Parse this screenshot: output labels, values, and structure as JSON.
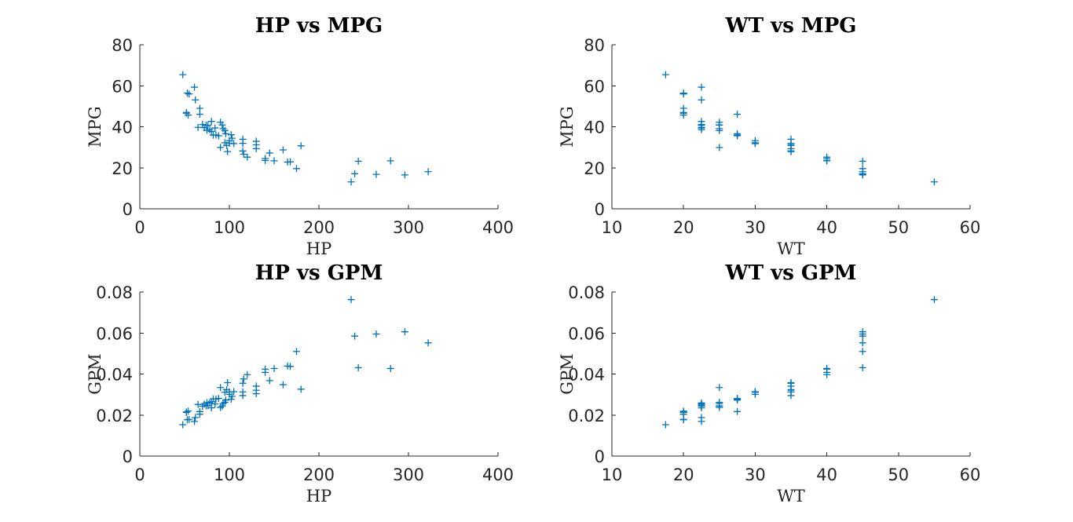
{
  "colors": {
    "marker": "#0072bd",
    "axis": "#262626"
  },
  "chart_data": [
    {
      "id": "hp-mpg",
      "type": "scatter",
      "title": "HP vs MPG",
      "xlabel": "HP",
      "ylabel": "MPG",
      "xlim": [
        0,
        400
      ],
      "ylim": [
        0,
        80
      ],
      "xticks": [
        0,
        100,
        200,
        300,
        400
      ],
      "yticks": [
        0,
        20,
        40,
        60,
        80
      ],
      "marker": "+",
      "grid": false,
      "points": [
        [
          48,
          65.4
        ],
        [
          52,
          47
        ],
        [
          52,
          46.6
        ],
        [
          55,
          56
        ],
        [
          53,
          56.4
        ],
        [
          54,
          45.7
        ],
        [
          61,
          59.3
        ],
        [
          62,
          53.1
        ],
        [
          65,
          39.7
        ],
        [
          67,
          46.1
        ],
        [
          67,
          49
        ],
        [
          70,
          41.1
        ],
        [
          72,
          39.6
        ],
        [
          74,
          40.8
        ],
        [
          75,
          38.3
        ],
        [
          76,
          40.7
        ],
        [
          78,
          38.6
        ],
        [
          80,
          42.6
        ],
        [
          80,
          37.7
        ],
        [
          82,
          35.9
        ],
        [
          84,
          39.4
        ],
        [
          85,
          36
        ],
        [
          88,
          35.6
        ],
        [
          90,
          42.2
        ],
        [
          90,
          29.9
        ],
        [
          92,
          40.9
        ],
        [
          93,
          39.1
        ],
        [
          95,
          32.2
        ],
        [
          95,
          38.2
        ],
        [
          96,
          36.6
        ],
        [
          97,
          30.9
        ],
        [
          98,
          27.9
        ],
        [
          100,
          32
        ],
        [
          100,
          33.2
        ],
        [
          103,
          34.4
        ],
        [
          102,
          36.1
        ],
        [
          105,
          31.8
        ],
        [
          115,
          33.9
        ],
        [
          115,
          31.9
        ],
        [
          115,
          28.2
        ],
        [
          116,
          26.6
        ],
        [
          120,
          25.2
        ],
        [
          130,
          31.2
        ],
        [
          130,
          29.3
        ],
        [
          130,
          32.9
        ],
        [
          140,
          24.5
        ],
        [
          140,
          23.6
        ],
        [
          145,
          27.2
        ],
        [
          150,
          23.4
        ],
        [
          160,
          28.7
        ],
        [
          165,
          22.8
        ],
        [
          168,
          22.9
        ],
        [
          175,
          19.6
        ],
        [
          180,
          30.7
        ],
        [
          236,
          13.1
        ],
        [
          240,
          17.1
        ],
        [
          244,
          23.2
        ],
        [
          264,
          16.8
        ],
        [
          280,
          23.4
        ],
        [
          296,
          16.5
        ],
        [
          322,
          18.1
        ]
      ]
    },
    {
      "id": "wt-mpg",
      "type": "scatter",
      "title": "WT vs MPG",
      "xlabel": "WT",
      "ylabel": "MPG",
      "xlim": [
        10,
        60
      ],
      "ylim": [
        0,
        80
      ],
      "xticks": [
        10,
        20,
        30,
        40,
        50,
        60
      ],
      "yticks": [
        0,
        20,
        40,
        60,
        80
      ],
      "marker": "+",
      "grid": false,
      "points": [
        [
          17.5,
          65.4
        ],
        [
          20,
          56.4
        ],
        [
          20,
          56
        ],
        [
          20,
          49
        ],
        [
          20,
          47
        ],
        [
          20,
          46.6
        ],
        [
          20,
          45.7
        ],
        [
          22.5,
          59.3
        ],
        [
          22.5,
          53.1
        ],
        [
          22.5,
          42.6
        ],
        [
          22.5,
          41.1
        ],
        [
          22.5,
          40.7
        ],
        [
          22.5,
          39.7
        ],
        [
          22.5,
          38.6
        ],
        [
          22.5,
          39.4
        ],
        [
          25,
          42.2
        ],
        [
          25,
          40.9
        ],
        [
          25,
          39.1
        ],
        [
          25,
          38.2
        ],
        [
          25,
          40.8
        ],
        [
          25,
          29.9
        ],
        [
          27.5,
          46.1
        ],
        [
          27.5,
          36.6
        ],
        [
          27.5,
          36
        ],
        [
          27.5,
          35.6
        ],
        [
          27.5,
          35.9
        ],
        [
          30,
          33.2
        ],
        [
          30,
          32
        ],
        [
          30,
          31.8
        ],
        [
          30,
          32.2
        ],
        [
          35,
          33.9
        ],
        [
          35,
          31.9
        ],
        [
          35,
          30.9
        ],
        [
          35,
          28.2
        ],
        [
          35,
          29.3
        ],
        [
          35,
          31.2
        ],
        [
          35,
          27.9
        ],
        [
          40,
          25.2
        ],
        [
          40,
          24.5
        ],
        [
          40,
          23.6
        ],
        [
          40,
          23.4
        ],
        [
          45,
          23.2
        ],
        [
          45,
          19.6
        ],
        [
          45,
          18.1
        ],
        [
          45,
          17.1
        ],
        [
          45,
          16.8
        ],
        [
          45,
          16.5
        ],
        [
          55,
          13.1
        ]
      ]
    },
    {
      "id": "hp-gpm",
      "type": "scatter",
      "title": "HP vs GPM",
      "xlabel": "HP",
      "ylabel": "GPM",
      "xlim": [
        0,
        400
      ],
      "ylim": [
        0,
        0.08
      ],
      "xticks": [
        0,
        100,
        200,
        300,
        400
      ],
      "yticks": [
        0,
        0.02,
        0.04,
        0.06,
        0.08
      ],
      "marker": "+",
      "grid": false,
      "points": [
        [
          48,
          0.0153
        ],
        [
          52,
          0.0213
        ],
        [
          52,
          0.0215
        ],
        [
          55,
          0.0179
        ],
        [
          53,
          0.0177
        ],
        [
          54,
          0.0219
        ],
        [
          61,
          0.0169
        ],
        [
          62,
          0.0188
        ],
        [
          65,
          0.0252
        ],
        [
          67,
          0.0217
        ],
        [
          67,
          0.0204
        ],
        [
          70,
          0.0243
        ],
        [
          72,
          0.0253
        ],
        [
          74,
          0.0245
        ],
        [
          75,
          0.0261
        ],
        [
          76,
          0.0246
        ],
        [
          78,
          0.0259
        ],
        [
          80,
          0.0235
        ],
        [
          80,
          0.0265
        ],
        [
          82,
          0.0279
        ],
        [
          84,
          0.0254
        ],
        [
          85,
          0.0278
        ],
        [
          88,
          0.0281
        ],
        [
          90,
          0.0237
        ],
        [
          90,
          0.0334
        ],
        [
          92,
          0.0244
        ],
        [
          93,
          0.0256
        ],
        [
          95,
          0.0311
        ],
        [
          95,
          0.0262
        ],
        [
          96,
          0.0273
        ],
        [
          97,
          0.0324
        ],
        [
          98,
          0.0358
        ],
        [
          100,
          0.0313
        ],
        [
          100,
          0.0301
        ],
        [
          103,
          0.0291
        ],
        [
          102,
          0.0277
        ],
        [
          105,
          0.0314
        ],
        [
          115,
          0.0295
        ],
        [
          115,
          0.0313
        ],
        [
          115,
          0.0355
        ],
        [
          116,
          0.0376
        ],
        [
          120,
          0.0397
        ],
        [
          130,
          0.0321
        ],
        [
          130,
          0.0341
        ],
        [
          130,
          0.0304
        ],
        [
          140,
          0.0408
        ],
        [
          140,
          0.0424
        ],
        [
          145,
          0.0368
        ],
        [
          150,
          0.0427
        ],
        [
          160,
          0.0348
        ],
        [
          165,
          0.0439
        ],
        [
          168,
          0.0437
        ],
        [
          175,
          0.051
        ],
        [
          180,
          0.0326
        ],
        [
          236,
          0.0763
        ],
        [
          240,
          0.0585
        ],
        [
          244,
          0.0431
        ],
        [
          264,
          0.0595
        ],
        [
          280,
          0.0427
        ],
        [
          296,
          0.0606
        ],
        [
          322,
          0.0552
        ]
      ]
    },
    {
      "id": "wt-gpm",
      "type": "scatter",
      "title": "WT vs GPM",
      "xlabel": "WT",
      "ylabel": "GPM",
      "xlim": [
        10,
        60
      ],
      "ylim": [
        0,
        0.08
      ],
      "xticks": [
        10,
        20,
        30,
        40,
        50,
        60
      ],
      "yticks": [
        0,
        0.02,
        0.04,
        0.06,
        0.08
      ],
      "marker": "+",
      "grid": false,
      "points": [
        [
          17.5,
          0.0153
        ],
        [
          20,
          0.0177
        ],
        [
          20,
          0.0179
        ],
        [
          20,
          0.0204
        ],
        [
          20,
          0.0213
        ],
        [
          20,
          0.0215
        ],
        [
          20,
          0.0219
        ],
        [
          22.5,
          0.0169
        ],
        [
          22.5,
          0.0188
        ],
        [
          22.5,
          0.0235
        ],
        [
          22.5,
          0.0243
        ],
        [
          22.5,
          0.0246
        ],
        [
          22.5,
          0.0252
        ],
        [
          22.5,
          0.0259
        ],
        [
          22.5,
          0.0254
        ],
        [
          25,
          0.0237
        ],
        [
          25,
          0.0244
        ],
        [
          25,
          0.0256
        ],
        [
          25,
          0.0262
        ],
        [
          25,
          0.0245
        ],
        [
          25,
          0.0334
        ],
        [
          27.5,
          0.0217
        ],
        [
          27.5,
          0.0273
        ],
        [
          27.5,
          0.0278
        ],
        [
          27.5,
          0.0281
        ],
        [
          27.5,
          0.0279
        ],
        [
          30,
          0.0301
        ],
        [
          30,
          0.0313
        ],
        [
          30,
          0.0314
        ],
        [
          30,
          0.0311
        ],
        [
          35,
          0.0295
        ],
        [
          35,
          0.0313
        ],
        [
          35,
          0.0324
        ],
        [
          35,
          0.0355
        ],
        [
          35,
          0.0341
        ],
        [
          35,
          0.0321
        ],
        [
          35,
          0.0358
        ],
        [
          40,
          0.0397
        ],
        [
          40,
          0.0408
        ],
        [
          40,
          0.0424
        ],
        [
          40,
          0.0427
        ],
        [
          45,
          0.0431
        ],
        [
          45,
          0.051
        ],
        [
          45,
          0.0552
        ],
        [
          45,
          0.0585
        ],
        [
          45,
          0.0595
        ],
        [
          45,
          0.0606
        ],
        [
          55,
          0.0763
        ]
      ]
    }
  ]
}
